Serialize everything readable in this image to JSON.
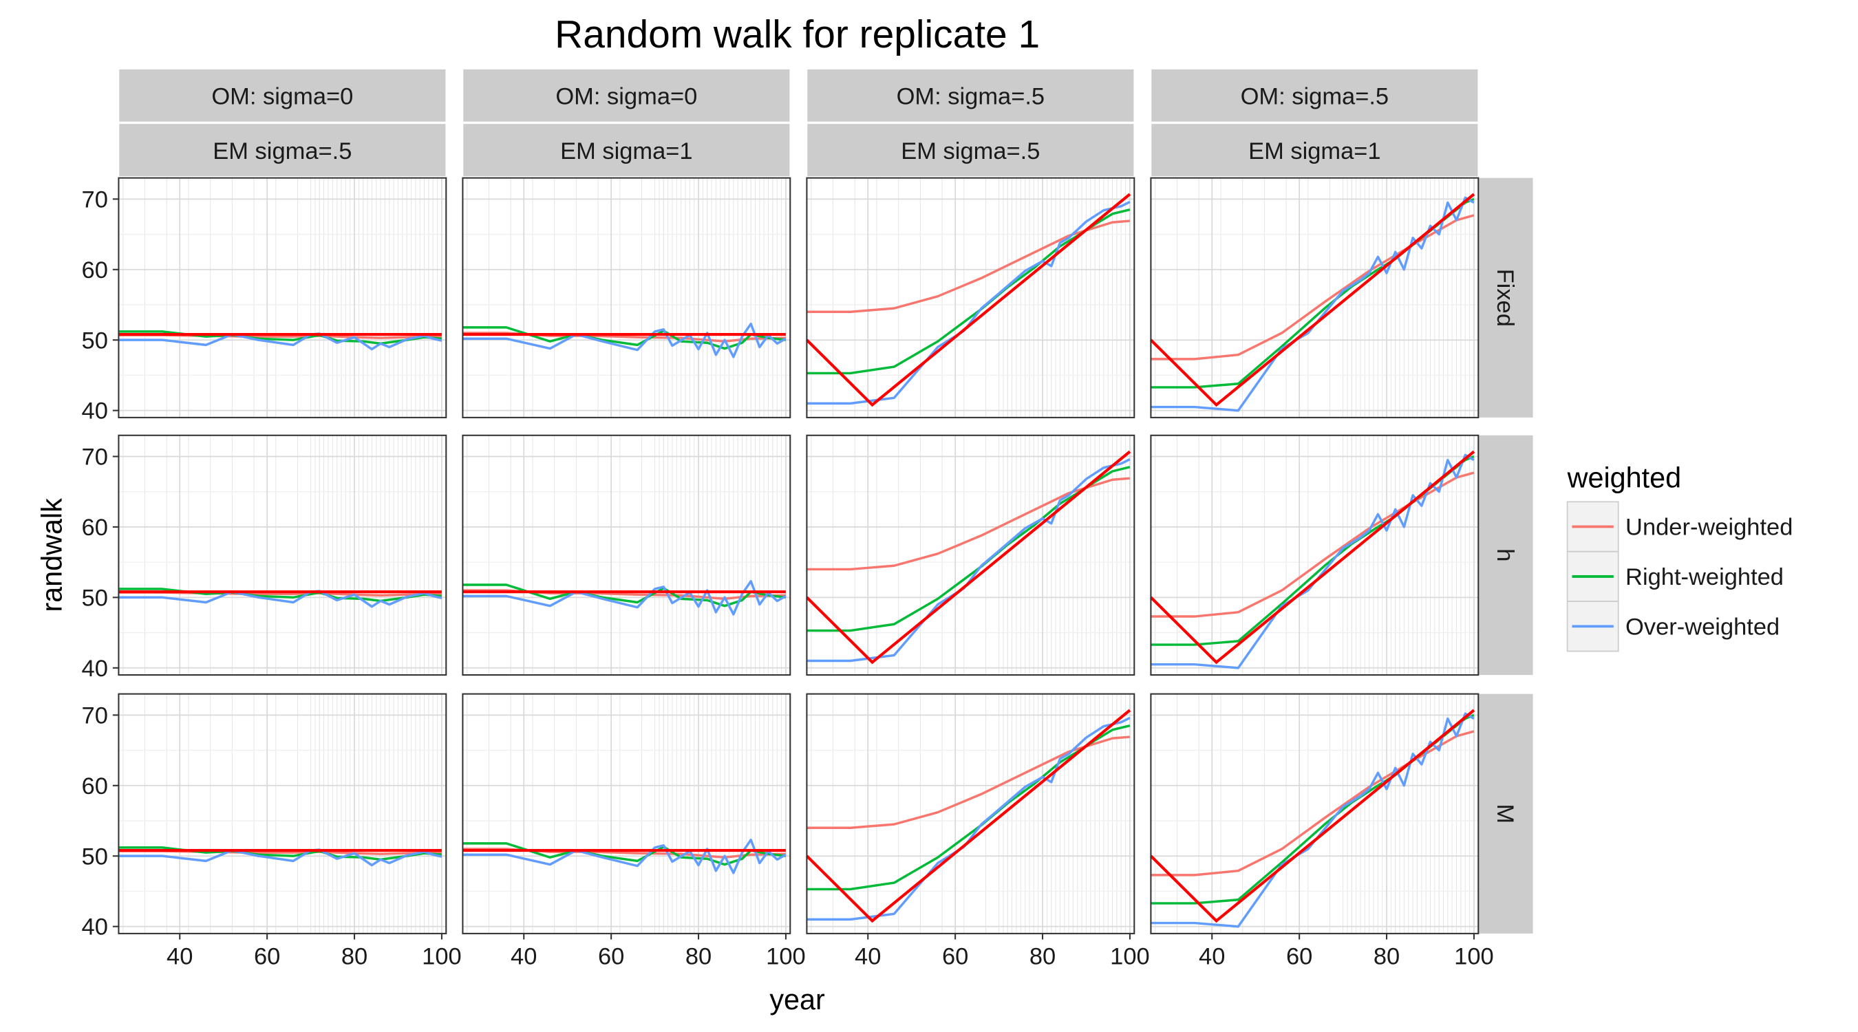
{
  "chart_data": {
    "type": "line",
    "title": "Random walk for replicate 1",
    "xlabel": "year",
    "ylabel": "randwalk",
    "xlim": [
      26,
      101
    ],
    "ylim": [
      39,
      73
    ],
    "x_ticks": [
      40,
      60,
      80,
      100
    ],
    "y_ticks": [
      40,
      50,
      60,
      70
    ],
    "grid": true,
    "legend": {
      "title": "weighted",
      "position": "right",
      "entries": [
        "Under-weighted",
        "Right-weighted",
        "Over-weighted"
      ]
    },
    "colors": {
      "Under-weighted": "#F8766D",
      "Right-weighted": "#00BA38",
      "Over-weighted": "#619CFF",
      "true": "#FF0000"
    },
    "facet_columns": [
      {
        "om": "OM: sigma=0",
        "em": "EM sigma=.5"
      },
      {
        "om": "OM: sigma=0",
        "em": "EM sigma=1"
      },
      {
        "om": "OM: sigma=.5",
        "em": "EM sigma=.5"
      },
      {
        "om": "OM: sigma=.5",
        "em": "EM sigma=1"
      }
    ],
    "facet_rows": [
      "Fixed",
      "h",
      "M"
    ],
    "curves": {
      "om0_em05": {
        "true_x": [
          26,
          100
        ],
        "true_y": [
          50.8,
          50.8
        ],
        "Under-weighted": {
          "x": [
            26,
            36,
            46,
            56,
            66,
            72,
            80,
            86,
            92,
            100
          ],
          "y": [
            50.7,
            50.7,
            50.6,
            50.5,
            50.5,
            50.6,
            50.4,
            50.3,
            50.4,
            50.5
          ]
        },
        "Right-weighted": {
          "x": [
            26,
            36,
            46,
            52,
            58,
            66,
            72,
            76,
            82,
            86,
            92,
            96,
            100
          ],
          "y": [
            51.2,
            51.2,
            50.5,
            50.7,
            50.2,
            50.0,
            50.7,
            49.9,
            49.8,
            49.5,
            50.0,
            50.4,
            50.2
          ]
        },
        "Over-weighted": {
          "x": [
            26,
            36,
            46,
            52,
            58,
            66,
            70,
            72,
            76,
            80,
            84,
            86,
            88,
            92,
            96,
            98,
            100
          ],
          "y": [
            50.0,
            50.0,
            49.3,
            50.8,
            50.0,
            49.3,
            50.8,
            50.9,
            49.6,
            50.4,
            48.7,
            49.5,
            49.0,
            50.1,
            50.6,
            50.2,
            49.9
          ]
        }
      },
      "om0_em1": {
        "true_x": [
          26,
          100
        ],
        "true_y": [
          50.8,
          50.8
        ],
        "Under-weighted": {
          "x": [
            26,
            36,
            46,
            56,
            66,
            76,
            86,
            92,
            100
          ],
          "y": [
            51.0,
            51.0,
            50.6,
            50.6,
            50.4,
            50.3,
            49.8,
            50.2,
            50.3
          ]
        },
        "Right-weighted": {
          "x": [
            26,
            36,
            46,
            52,
            58,
            66,
            72,
            76,
            82,
            86,
            90,
            92,
            96,
            100
          ],
          "y": [
            51.8,
            51.8,
            49.8,
            50.8,
            50.0,
            49.3,
            51.3,
            49.8,
            49.6,
            48.8,
            49.6,
            50.8,
            50.3,
            50.0
          ]
        },
        "Over-weighted": {
          "x": [
            26,
            36,
            46,
            52,
            58,
            66,
            70,
            72,
            74,
            78,
            80,
            82,
            84,
            86,
            88,
            90,
            92,
            94,
            96,
            98,
            100
          ],
          "y": [
            50.2,
            50.2,
            48.8,
            50.8,
            49.8,
            48.6,
            51.2,
            51.5,
            49.2,
            50.7,
            48.7,
            51.0,
            47.9,
            50.0,
            47.6,
            50.5,
            52.3,
            49.0,
            50.7,
            49.5,
            50.2
          ]
        }
      },
      "om05_em05": {
        "true_x": [
          26,
          41,
          100
        ],
        "true_y": [
          50.0,
          40.8,
          70.7
        ],
        "Under-weighted": {
          "x": [
            26,
            36,
            46,
            56,
            66,
            76,
            86,
            96,
            100
          ],
          "y": [
            54.0,
            54.0,
            54.5,
            56.2,
            58.8,
            61.8,
            64.8,
            66.7,
            66.9
          ]
        },
        "Right-weighted": {
          "x": [
            26,
            36,
            46,
            56,
            66,
            72,
            78,
            84,
            88,
            92,
            96,
            100
          ],
          "y": [
            45.3,
            45.3,
            46.2,
            49.8,
            54.4,
            57.5,
            60.2,
            63.3,
            64.8,
            66.4,
            67.9,
            68.5
          ]
        },
        "Over-weighted": {
          "x": [
            26,
            36,
            46,
            56,
            62,
            66,
            70,
            76,
            80,
            82,
            84,
            86,
            90,
            94,
            98,
            100
          ],
          "y": [
            41.0,
            41.0,
            41.8,
            49.0,
            51.3,
            54.5,
            56.6,
            59.8,
            61.2,
            60.5,
            63.8,
            64.5,
            66.8,
            68.4,
            69.0,
            69.6
          ]
        }
      },
      "om05_em1": {
        "true_x": [
          26,
          41,
          100
        ],
        "true_y": [
          50.0,
          40.8,
          70.7
        ],
        "Under-weighted": {
          "x": [
            26,
            36,
            46,
            56,
            66,
            76,
            86,
            96,
            100
          ],
          "y": [
            47.3,
            47.3,
            47.9,
            51.0,
            55.5,
            59.8,
            63.5,
            67.0,
            67.7
          ]
        },
        "Right-weighted": {
          "x": [
            26,
            36,
            46,
            56,
            66,
            72,
            78,
            82,
            86,
            90,
            94,
            98,
            100
          ],
          "y": [
            43.3,
            43.3,
            43.8,
            49.1,
            54.6,
            57.6,
            60.0,
            61.5,
            63.5,
            65.5,
            67.5,
            69.5,
            70.0
          ]
        },
        "Over-weighted": {
          "x": [
            26,
            36,
            46,
            56,
            62,
            66,
            70,
            74,
            76,
            78,
            80,
            82,
            84,
            86,
            88,
            90,
            92,
            94,
            96,
            98,
            100
          ],
          "y": [
            40.5,
            40.5,
            40.0,
            48.8,
            51.0,
            54.0,
            57.0,
            58.5,
            59.5,
            61.8,
            59.5,
            62.5,
            60.0,
            64.5,
            63.0,
            66.2,
            65.0,
            69.5,
            67.0,
            70.2,
            69.5
          ]
        }
      }
    }
  }
}
